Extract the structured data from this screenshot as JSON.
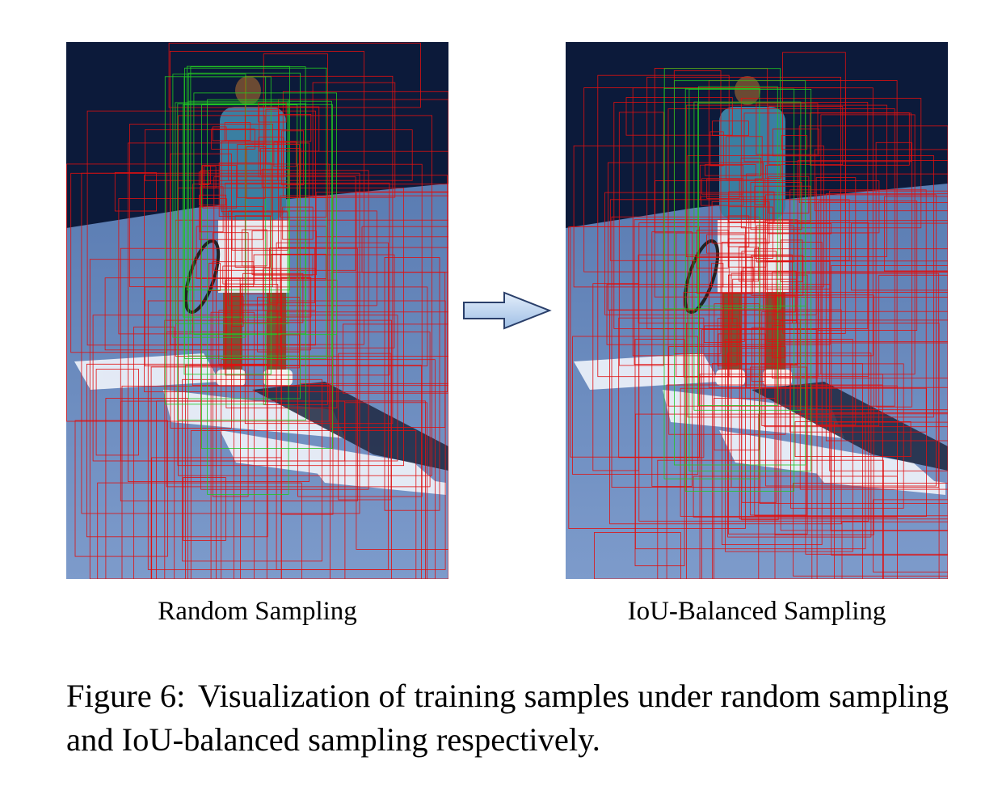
{
  "panels": [
    {
      "label": "Random Sampling"
    },
    {
      "label": "IoU-Balanced Sampling"
    }
  ],
  "figure": {
    "label": "Figure 6:",
    "text": "Visualization of training samples under random sampling and IoU-balanced sampling respectively."
  },
  "colors": {
    "negative_box": "#e01010",
    "positive_box": "#22c622",
    "arrow_fill": "#b9d3f0",
    "arrow_stroke": "#2a3f6a",
    "court": "#6f8fbf",
    "background_wall": "#0c1a3a"
  }
}
